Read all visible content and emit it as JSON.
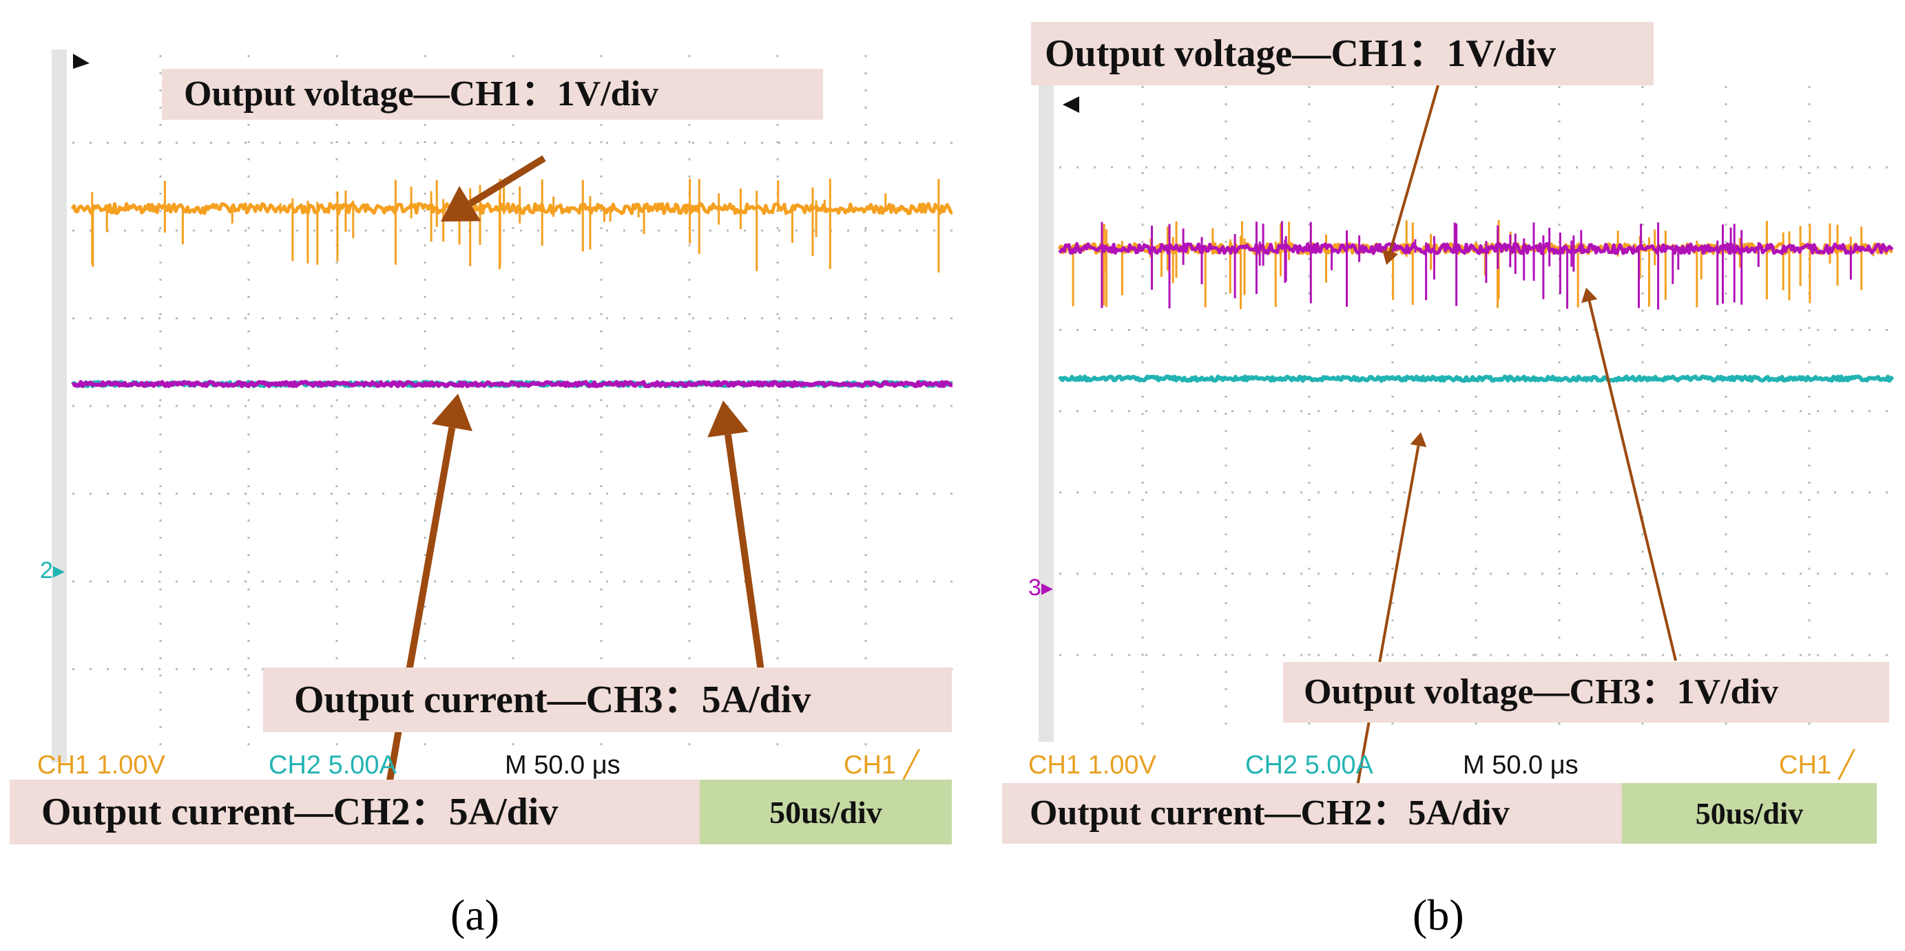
{
  "colors": {
    "ch1": "#f5a020",
    "ch2": "#22b3b3",
    "ch3": "#b012b8",
    "arrow": "#9c4a10",
    "label_bg": "#f0dcd8",
    "time_bg": "#c5d9a3",
    "grid": "#b8b8b8",
    "status_ch1": "#e8a020",
    "status_ch2": "#22b3b3"
  },
  "chart_data": [
    {
      "type": "line",
      "panel_caption": "(a)",
      "x_divisions": 10,
      "y_divisions": 8,
      "time_per_div_us": 50,
      "series": [
        {
          "name": "Output voltage—CH1",
          "channel": "CH1",
          "color": "#f5a020",
          "level_div": 1.75,
          "noise": "spiky"
        },
        {
          "name": "Output current—CH3",
          "channel": "CH3",
          "color": "#b012b8",
          "level_div": 3.75,
          "noise": "low"
        },
        {
          "name": "Output current—CH2",
          "channel": "CH2",
          "color": "#22b3b3",
          "level_div": 3.75,
          "noise": "low"
        }
      ],
      "annotations": {
        "ch1": "Output voltage—CH1：1V/div",
        "ch3": "Output current—CH3：5A/div",
        "ch2": "Output current—CH2：5A/div",
        "time": "50us/div"
      },
      "status": {
        "ch1": "CH1  1.00V",
        "ch2": "CH2  5.00A",
        "time": "M 50.0 μs",
        "trigger": "CH1 ╱"
      },
      "markers": {
        "ground": "2"
      }
    },
    {
      "type": "line",
      "panel_caption": "(b)",
      "x_divisions": 10,
      "y_divisions": 8,
      "time_per_div_us": 50,
      "series": [
        {
          "name": "Output voltage—CH1",
          "channel": "CH1",
          "color": "#f5a020",
          "level_div": 2.0,
          "noise": "spiky"
        },
        {
          "name": "Output voltage—CH3",
          "channel": "CH3",
          "color": "#b012b8",
          "level_div": 2.0,
          "noise": "spiky"
        },
        {
          "name": "Output current—CH2",
          "channel": "CH2",
          "color": "#22b3b3",
          "level_div": 3.6,
          "noise": "low"
        }
      ],
      "annotations": {
        "ch1": "Output voltage—CH1：1V/div",
        "ch3": "Output voltage—CH3：1V/div",
        "ch2": "Output current—CH2：5A/div",
        "time": "50us/div"
      },
      "status": {
        "ch1": "CH1  1.00V",
        "ch2": "CH2  5.00A",
        "time": "M 50.0 μs",
        "trigger": "CH1 ╱"
      },
      "markers": {
        "ground": "3"
      }
    }
  ]
}
